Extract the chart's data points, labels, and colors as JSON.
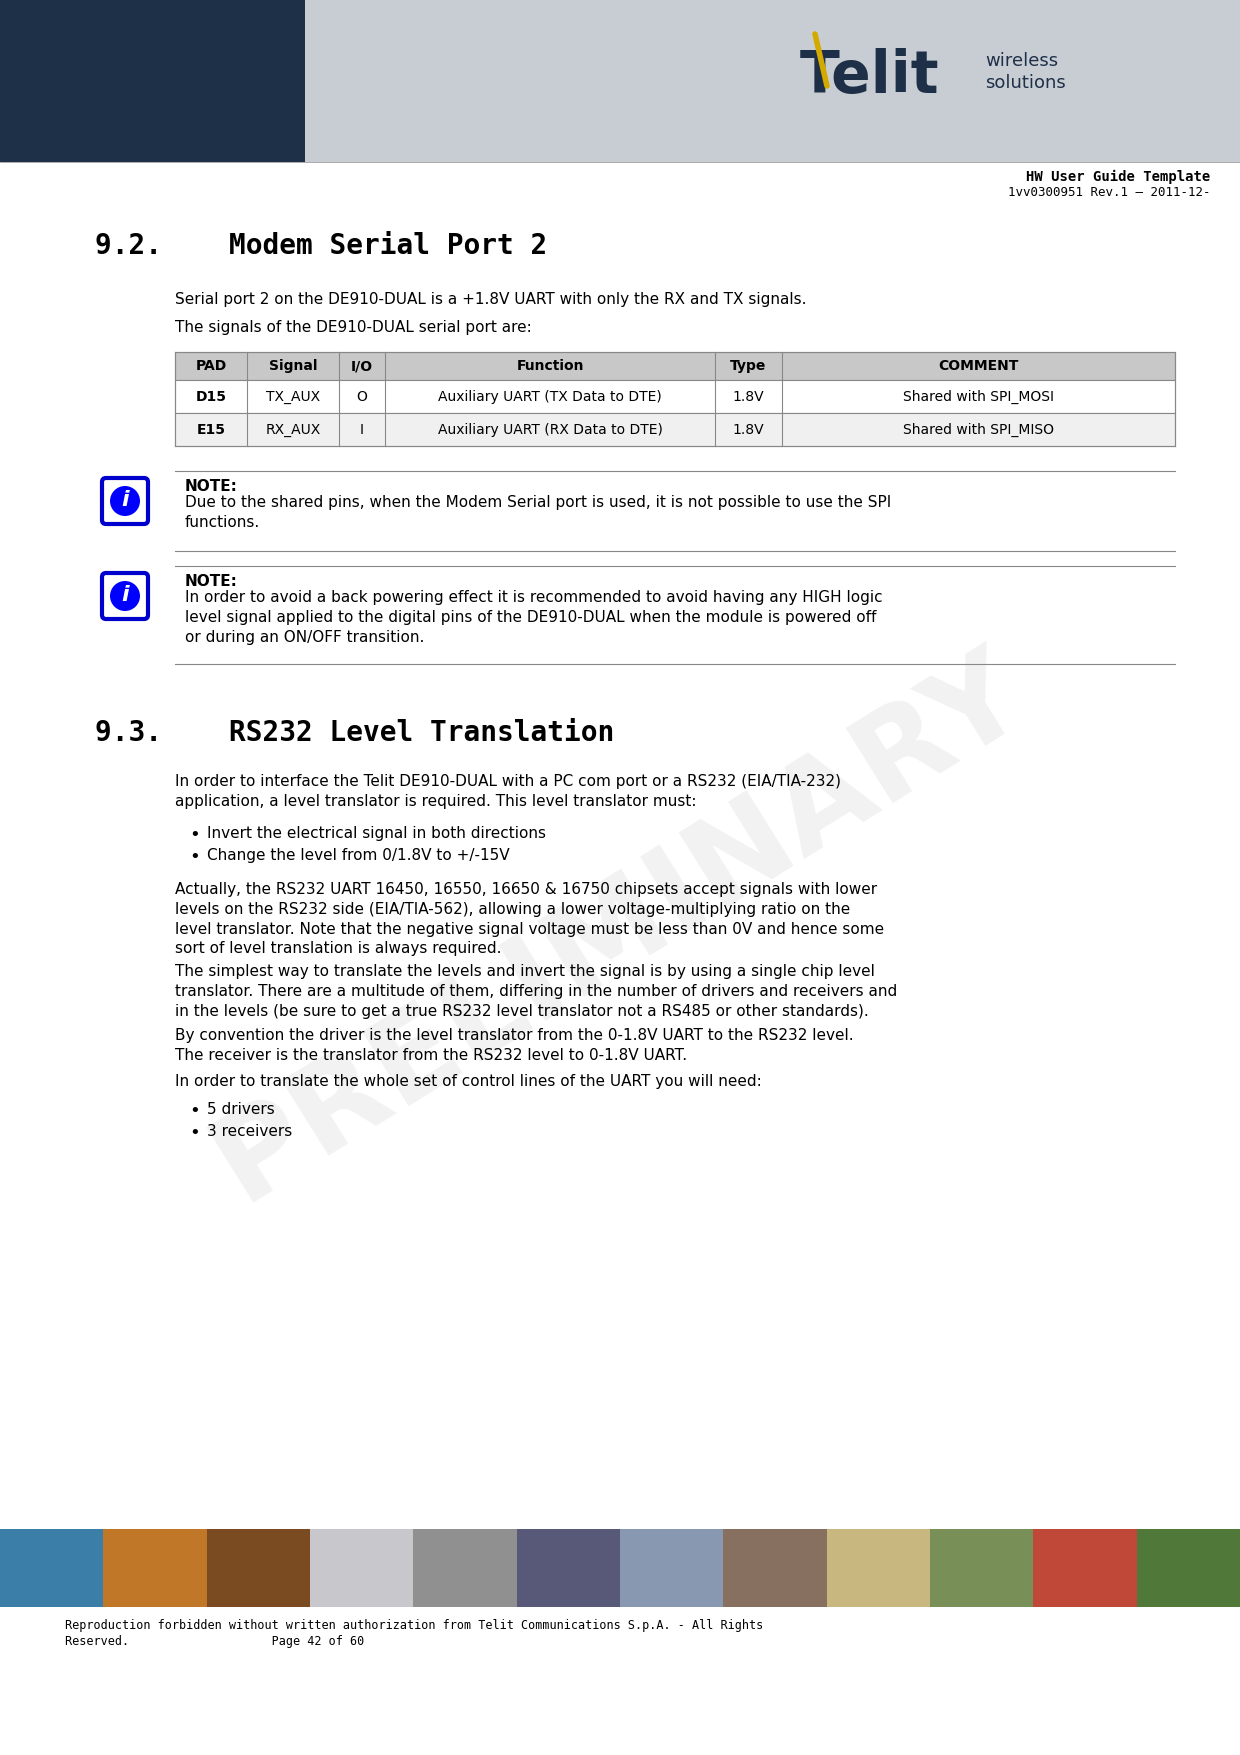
{
  "page_bg": "#ffffff",
  "header_dark_bg": "#1e3048",
  "header_light_bg": "#c8cdd4",
  "doc_title": "HW User Guide Template",
  "doc_subtitle": "1vv0300951 Rev.1 – 2011-12-",
  "footer_text_line1": "Reproduction forbidden without written authorization from Telit Communications S.p.A. - All Rights",
  "footer_text_line2": "Reserved.                    Page 42 of 60",
  "section_92_title": "9.2.    Modem Serial Port 2",
  "section_93_title": "9.3.    RS232 Level Translation",
  "para1": "Serial port 2 on the DE910-DUAL is a +1.8V UART with only the RX and TX signals.",
  "para2": "The signals of the DE910-DUAL serial port are:",
  "table_headers": [
    "PAD",
    "Signal",
    "I/O",
    "Function",
    "Type",
    "COMMENT"
  ],
  "table_row1": [
    "D15",
    "TX_AUX",
    "O",
    "Auxiliary UART (TX Data to DTE)",
    "1.8V",
    "Shared with SPI_MOSI"
  ],
  "table_row2": [
    "E15",
    "RX_AUX",
    "I",
    "Auxiliary UART (RX Data to DTE)",
    "1.8V",
    "Shared with SPI_MISO"
  ],
  "table_header_bg": "#c8c8c8",
  "note1_title": "NOTE:",
  "note1_text": "Due to the shared pins, when the Modem Serial port is used, it is not possible to use the SPI\nfunctions.",
  "note2_title": "NOTE:",
  "note2_text": "In order to avoid a back powering effect it is recommended to avoid having any HIGH logic\nlevel signal applied to the digital pins of the DE910-DUAL when the module is powered off\nor during an ON/OFF transition.",
  "para_rs232_1": "In order to interface the Telit DE910-DUAL with a PC com port or a RS232 (EIA/TIA-232)\napplication, a level translator is required. This level translator must:",
  "bullet1": "Invert the electrical signal in both directions",
  "bullet2": "Change the level from 0/1.8V to +/-15V",
  "para_rs232_2": "Actually, the RS232 UART 16450, 16550, 16650 & 16750 chipsets accept signals with lower\nlevels on the RS232 side (EIA/TIA-562), allowing a lower voltage-multiplying ratio on the\nlevel translator. Note that the negative signal voltage must be less than 0V and hence some\nsort of level translation is always required.",
  "para_rs232_3": "The simplest way to translate the levels and invert the signal is by using a single chip level\ntranslator. There are a multitude of them, differing in the number of drivers and receivers and\nin the levels (be sure to get a true RS232 level translator not a RS485 or other standards).",
  "para_rs232_4": "By convention the driver is the level translator from the 0-1.8V UART to the RS232 level.\nThe receiver is the translator from the RS232 level to 0-1.8V UART.",
  "para_rs232_5": "In order to translate the whole set of control lines of the UART you will need:",
  "bullet3": "5 drivers",
  "bullet4": "3 receivers",
  "watermark_text": "PRELIMINARY",
  "watermark_color": "#d0d0d0",
  "icon_blue": "#0000ff",
  "icon_border": "#0000cc",
  "footer_strip_colors": [
    "#3b7fa8",
    "#c07828",
    "#7a4a20",
    "#c8c8cc",
    "#909090",
    "#585878",
    "#8898b0",
    "#887060",
    "#c8b880",
    "#789058",
    "#c04838",
    "#507838"
  ]
}
